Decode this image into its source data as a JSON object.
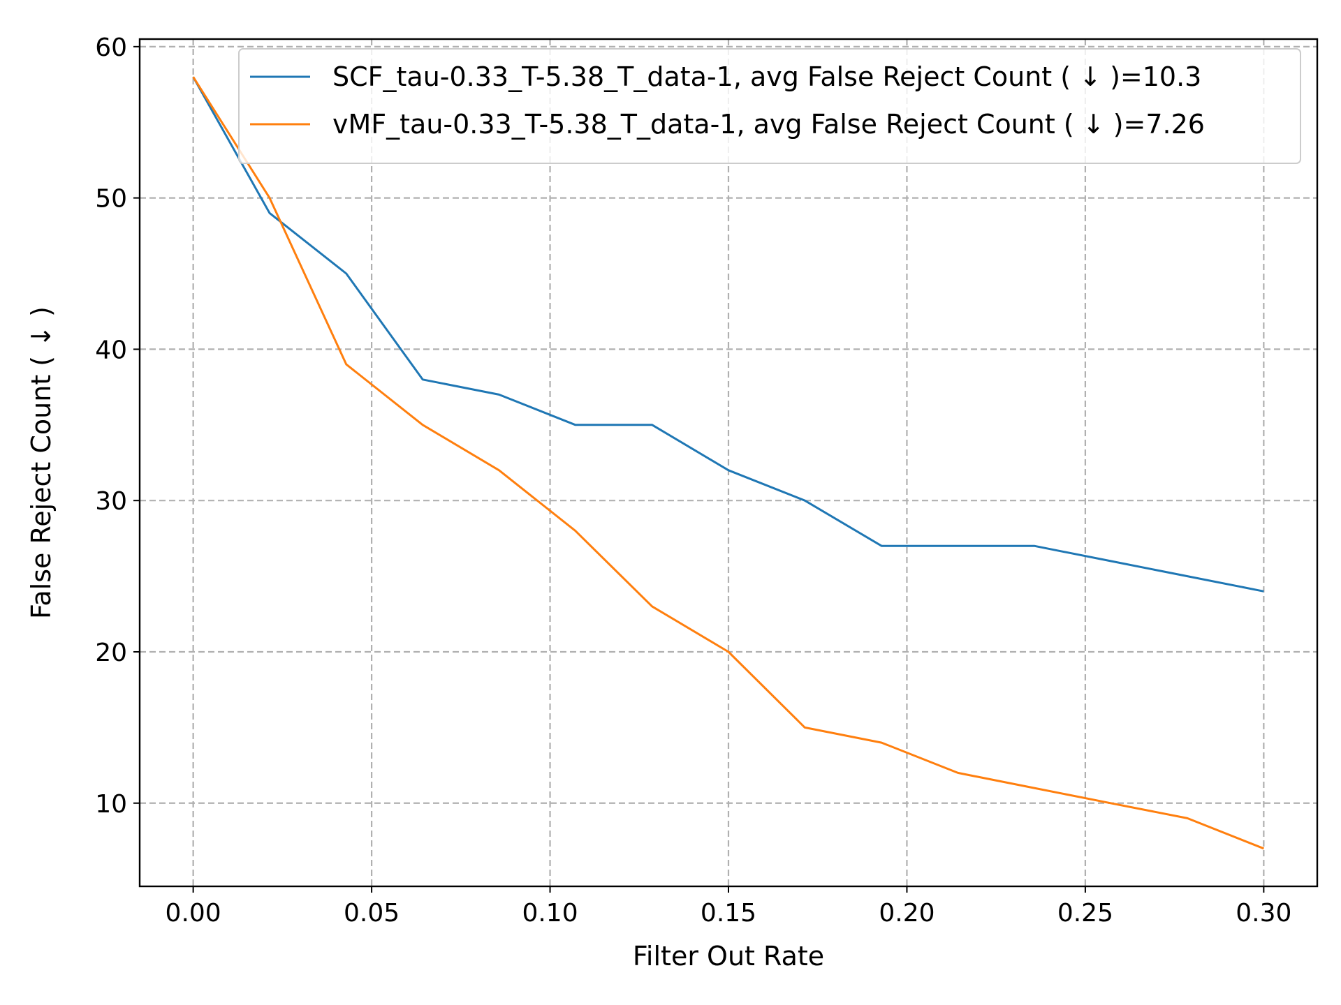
{
  "chart_data": {
    "type": "line",
    "title": "",
    "xlabel": "Filter Out Rate",
    "ylabel": "False Reject Count ( ↓ )",
    "xlim": [
      -0.015,
      0.315
    ],
    "ylim": [
      4.5,
      60.5
    ],
    "xticks": [
      0.0,
      0.05,
      0.1,
      0.15,
      0.2,
      0.25,
      0.3
    ],
    "xtick_labels": [
      "0.00",
      "0.05",
      "0.10",
      "0.15",
      "0.20",
      "0.25",
      "0.30"
    ],
    "yticks": [
      10,
      20,
      30,
      40,
      50,
      60
    ],
    "ytick_labels": [
      "10",
      "20",
      "30",
      "40",
      "50",
      "60"
    ],
    "grid": true,
    "legend_position": "top-right",
    "series": [
      {
        "name": "SCF_tau-0.33_T-5.38_T_data-1, avg False Reject Count ( ↓ )=10.3",
        "color": "#1f77b4",
        "x": [
          0.0,
          0.0214,
          0.0429,
          0.0643,
          0.0857,
          0.1071,
          0.1286,
          0.15,
          0.1714,
          0.1929,
          0.2143,
          0.2357,
          0.2571,
          0.2786,
          0.3
        ],
        "y": [
          58,
          49,
          45,
          38,
          37,
          35,
          35,
          32,
          30,
          27,
          27,
          27,
          26,
          25,
          24
        ]
      },
      {
        "name": "vMF_tau-0.33_T-5.38_T_data-1, avg False Reject Count ( ↓ )=7.26",
        "color": "#ff7f0e",
        "x": [
          0.0,
          0.0214,
          0.0429,
          0.0643,
          0.0857,
          0.1071,
          0.1286,
          0.15,
          0.1714,
          0.1929,
          0.2143,
          0.2357,
          0.2571,
          0.2786,
          0.3
        ],
        "y": [
          58,
          50,
          39,
          35,
          32,
          28,
          23,
          20,
          15,
          14,
          12,
          11,
          10,
          9,
          7
        ]
      }
    ]
  }
}
